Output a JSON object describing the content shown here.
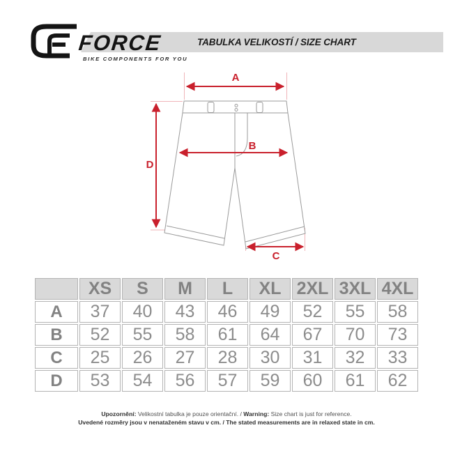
{
  "header": {
    "brand": "FORCE",
    "tagline": "BIKE COMPONENTS FOR YOU",
    "title": "TABULKA VELIKOSTÍ / SIZE CHART"
  },
  "diagram": {
    "labels": {
      "a": "A",
      "b": "B",
      "c": "C",
      "d": "D"
    }
  },
  "table": {
    "columns": [
      "XS",
      "S",
      "M",
      "L",
      "XL",
      "2XL",
      "3XL",
      "4XL"
    ],
    "rows": [
      {
        "label": "A",
        "values": [
          "37",
          "40",
          "43",
          "46",
          "49",
          "52",
          "55",
          "58"
        ]
      },
      {
        "label": "B",
        "values": [
          "52",
          "55",
          "58",
          "61",
          "64",
          "67",
          "70",
          "73"
        ]
      },
      {
        "label": "C",
        "values": [
          "25",
          "26",
          "27",
          "28",
          "30",
          "31",
          "32",
          "33"
        ]
      },
      {
        "label": "D",
        "values": [
          "53",
          "54",
          "56",
          "57",
          "59",
          "60",
          "61",
          "62"
        ]
      }
    ]
  },
  "footer": {
    "line1": [
      {
        "text": "Upozornění:",
        "bold": true
      },
      {
        "text": " Velikostní tabulka je pouze orientační. / ",
        "bold": false
      },
      {
        "text": "Warning:",
        "bold": true
      },
      {
        "text": " Size chart is just for reference.",
        "bold": false
      }
    ],
    "line2": "Uvedené rozměry jsou v nenataženém stavu v cm. / The stated measurements are in relaxed state in cm."
  },
  "colors": {
    "red": "#c9202c",
    "pink": "#f0b4b8",
    "banner": "#d8d8d8",
    "thead": "#d9d9d9",
    "tborder": "#b3b3b3",
    "ttext": "#8c8c8c",
    "outline": "#9a9a9a",
    "ink": "#1b1b1b"
  }
}
